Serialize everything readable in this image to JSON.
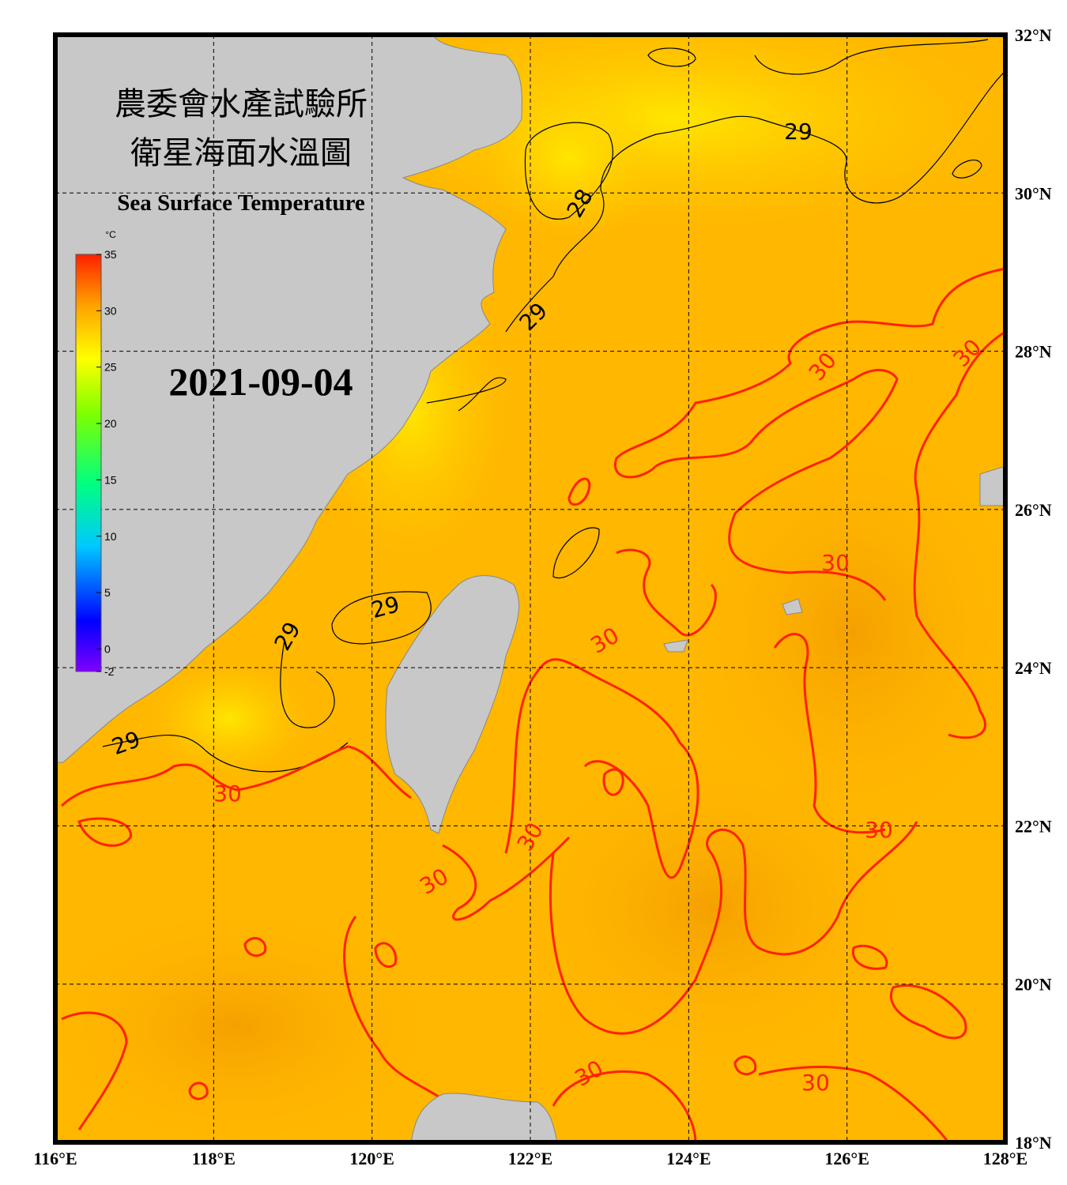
{
  "title_zh": [
    "農委會水產試驗所",
    "衛星海面水溫圖"
  ],
  "title_en": "Sea Surface Temperature",
  "date": "2021-09-04",
  "colorbar": {
    "unit": "°C",
    "range": [
      -2,
      35
    ],
    "ticks": [
      35,
      30,
      25,
      20,
      15,
      10,
      5,
      0,
      -2
    ]
  },
  "lon_ticks": [
    {
      "value": 116,
      "label": "116°E"
    },
    {
      "value": 118,
      "label": "118°E"
    },
    {
      "value": 120,
      "label": "120°E"
    },
    {
      "value": 122,
      "label": "122°E"
    },
    {
      "value": 124,
      "label": "124°E"
    },
    {
      "value": 126,
      "label": "126°E"
    },
    {
      "value": 128,
      "label": "128°E"
    }
  ],
  "lat_ticks": [
    {
      "value": 32,
      "label": "32°N"
    },
    {
      "value": 30,
      "label": "30°N"
    },
    {
      "value": 28,
      "label": "28°N"
    },
    {
      "value": 26,
      "label": "26°N"
    },
    {
      "value": 24,
      "label": "24°N"
    },
    {
      "value": 22,
      "label": "22°N"
    },
    {
      "value": 20,
      "label": "20°N"
    },
    {
      "value": 18,
      "label": "18°N"
    }
  ],
  "lon_range": [
    116,
    128
  ],
  "lat_range": [
    18,
    32
  ],
  "contour_colors": {
    "28": "#000000",
    "29": "#000000",
    "30": "#ff2200"
  },
  "contour_labels": [
    "29",
    "28",
    "29",
    "30",
    "30",
    "30",
    "29",
    "29",
    "30",
    "29",
    "30",
    "30",
    "30",
    "30",
    "30",
    "30"
  ]
}
